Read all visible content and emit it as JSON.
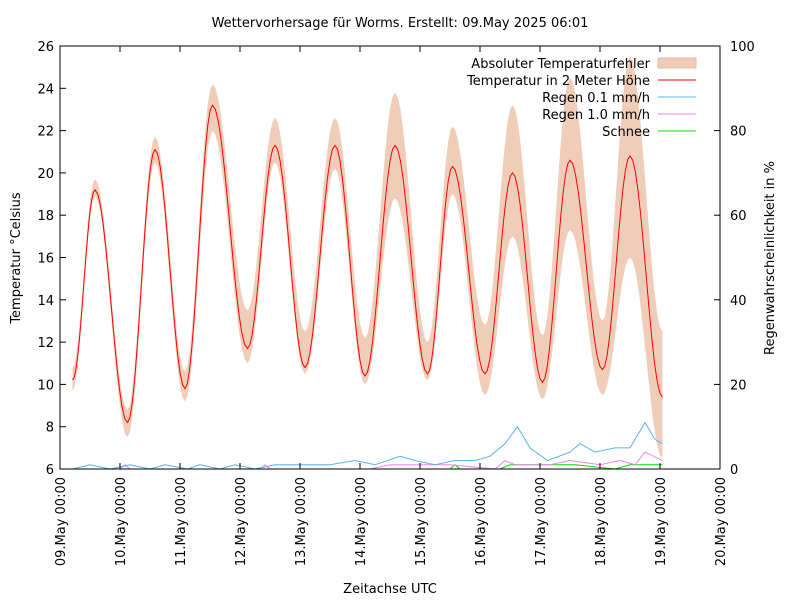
{
  "chart_data": {
    "type": "line",
    "title": "Wettervorhersage für Worms. Erstellt: 09.May 2025 06:01",
    "xlabel": "Zeitachse UTC",
    "ylabel": "Temperatur °Celsius",
    "y2label": "Regenwahrscheinlichkeit in %",
    "xlim": [
      "05-09 00:00",
      "05-20 00:00"
    ],
    "ylim": [
      6,
      26
    ],
    "y2lim": [
      0,
      100
    ],
    "yticks": [
      "6",
      "8",
      "10",
      "12",
      "14",
      "16",
      "18",
      "20",
      "22",
      "24",
      "26"
    ],
    "y2ticks": [
      "0",
      "20",
      "40",
      "60",
      "80",
      "100"
    ],
    "xticks": [
      "09.May 00:00",
      "10.May 00:00",
      "11.May 00:00",
      "12.May 00:00",
      "13.May 00:00",
      "14.May 00:00",
      "15.May 00:00",
      "16.May 00:00",
      "17.May 00:00",
      "18.May 00:00",
      "19.May 00:00",
      "20.May 00:00"
    ],
    "grid": false,
    "legend_position": "top-right",
    "legend": [
      "Absoluter Temperaturfehler",
      "Temperatur in 2 Meter Höhe",
      "Regen 0.1 mm/h",
      "Regen 1.0 mm/h",
      "Schnee"
    ],
    "colors": {
      "band": "#f0cdb9",
      "temp": "#ff0000",
      "rain01": "#56b4e9",
      "rain10": "#ee82ee",
      "snow": "#00e000"
    },
    "temperature": [
      [
        "05-09 05:00",
        10.2,
        9.7,
        10.8
      ],
      [
        "05-09 14:00",
        19.2,
        18.9,
        19.7
      ],
      [
        "05-10 03:00",
        8.2,
        7.5,
        8.8
      ],
      [
        "05-10 14:00",
        21.1,
        20.5,
        21.7
      ],
      [
        "05-11 02:00",
        9.8,
        9.2,
        10.6
      ],
      [
        "05-11 13:00",
        23.2,
        22.0,
        24.2
      ],
      [
        "05-12 03:00",
        11.7,
        11.0,
        13.5
      ],
      [
        "05-12 14:00",
        21.3,
        20.5,
        22.6
      ],
      [
        "05-13 02:00",
        10.8,
        10.5,
        12.5
      ],
      [
        "05-13 14:00",
        21.3,
        20.2,
        22.6
      ],
      [
        "05-14 02:00",
        10.4,
        10.0,
        12.2
      ],
      [
        "05-14 14:00",
        21.3,
        18.8,
        23.8
      ],
      [
        "05-15 03:00",
        10.5,
        10.2,
        12.0
      ],
      [
        "05-15 13:00",
        20.3,
        19.0,
        22.2
      ],
      [
        "05-16 02:00",
        10.5,
        9.5,
        12.8
      ],
      [
        "05-16 13:00",
        20.0,
        17.0,
        23.2
      ],
      [
        "05-17 01:00",
        10.1,
        9.3,
        12.3
      ],
      [
        "05-17 12:00",
        20.6,
        17.3,
        24.5
      ],
      [
        "05-18 01:00",
        10.7,
        9.5,
        13.0
      ],
      [
        "05-18 12:00",
        20.8,
        16.0,
        25.5
      ],
      [
        "05-19 01:00",
        9.4,
        6.5,
        12.5
      ]
    ],
    "rain_0_1": [
      [
        "05-09 05:00",
        0
      ],
      [
        "05-09 12:00",
        1
      ],
      [
        "05-09 20:00",
        0
      ],
      [
        "05-10 04:00",
        1
      ],
      [
        "05-10 12:00",
        0
      ],
      [
        "05-10 18:00",
        1
      ],
      [
        "05-11 03:00",
        0
      ],
      [
        "05-11 08:00",
        1
      ],
      [
        "05-11 16:00",
        0
      ],
      [
        "05-11 22:00",
        1
      ],
      [
        "05-12 06:00",
        0
      ],
      [
        "05-12 14:00",
        1
      ],
      [
        "05-13 00:00",
        1
      ],
      [
        "05-13 12:00",
        1
      ],
      [
        "05-13 22:00",
        2
      ],
      [
        "05-14 06:00",
        1
      ],
      [
        "05-14 16:00",
        3
      ],
      [
        "05-14 22:00",
        2
      ],
      [
        "05-15 06:00",
        1
      ],
      [
        "05-15 14:00",
        2
      ],
      [
        "05-15 22:00",
        2
      ],
      [
        "05-16 04:00",
        3
      ],
      [
        "05-16 10:00",
        6
      ],
      [
        "05-16 15:00",
        10
      ],
      [
        "05-16 20:00",
        5
      ],
      [
        "05-17 03:00",
        2
      ],
      [
        "05-17 12:00",
        4
      ],
      [
        "05-17 16:00",
        6
      ],
      [
        "05-17 22:00",
        4
      ],
      [
        "05-18 06:00",
        5
      ],
      [
        "05-18 12:00",
        5
      ],
      [
        "05-18 18:00",
        11
      ],
      [
        "05-18 22:00",
        7
      ],
      [
        "05-19 01:00",
        6
      ]
    ],
    "rain_1_0": [
      [
        "05-09 05:00",
        0
      ],
      [
        "05-10 00:00",
        0
      ],
      [
        "05-10 02:00",
        1
      ],
      [
        "05-10 04:00",
        0
      ],
      [
        "05-12 08:00",
        0
      ],
      [
        "05-12 10:00",
        1
      ],
      [
        "05-12 12:00",
        0
      ],
      [
        "05-14 04:00",
        0
      ],
      [
        "05-14 12:00",
        1
      ],
      [
        "05-15 12:00",
        1
      ],
      [
        "05-16 06:00",
        0
      ],
      [
        "05-16 10:00",
        2
      ],
      [
        "05-16 14:00",
        1
      ],
      [
        "05-17 04:00",
        1
      ],
      [
        "05-17 12:00",
        2
      ],
      [
        "05-18 00:00",
        1
      ],
      [
        "05-18 08:00",
        2
      ],
      [
        "05-18 14:00",
        1
      ],
      [
        "05-18 18:00",
        4
      ],
      [
        "05-19 01:00",
        2
      ]
    ],
    "snow": [
      [
        "05-15 12:00",
        0
      ],
      [
        "05-15 14:00",
        1
      ],
      [
        "05-15 16:00",
        0
      ],
      [
        "05-16 08:00",
        0
      ],
      [
        "05-16 12:00",
        1
      ],
      [
        "05-16 16:00",
        1
      ],
      [
        "05-17 06:00",
        1
      ],
      [
        "05-17 14:00",
        1
      ],
      [
        "05-18 06:00",
        0
      ],
      [
        "05-18 12:00",
        1
      ],
      [
        "05-18 20:00",
        1
      ],
      [
        "05-19 01:00",
        1
      ]
    ]
  }
}
